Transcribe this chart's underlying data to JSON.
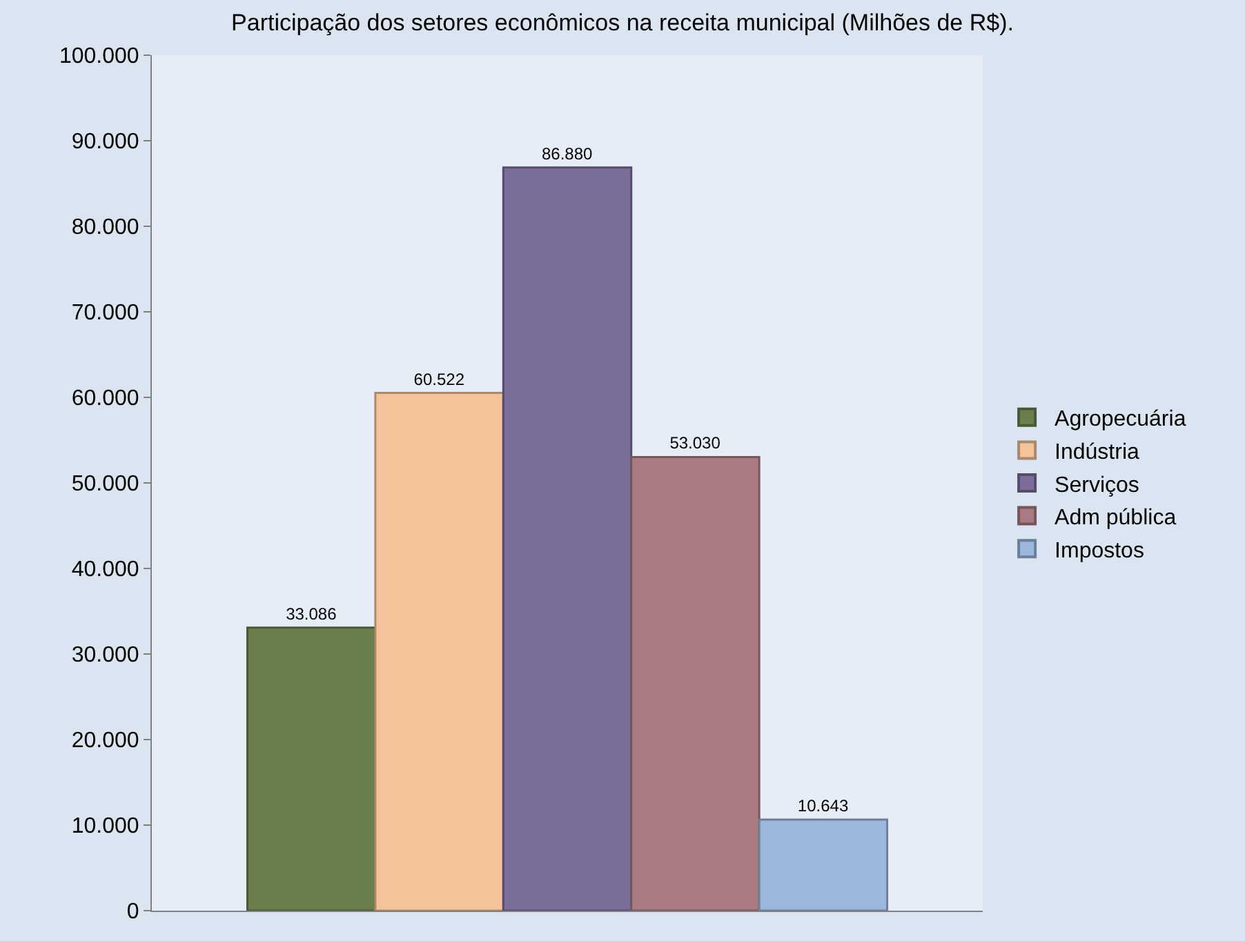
{
  "chart_data": {
    "type": "bar",
    "title": "Participação dos setores econômicos na receita municipal (Milhões de R$).",
    "categories": [
      null
    ],
    "series": [
      {
        "name": "Agropecuária",
        "color": "#6a7f4c",
        "values": [
          33086
        ],
        "value_labels": [
          "33.086"
        ]
      },
      {
        "name": "Indústria",
        "color": "#f4c39a",
        "values": [
          60522
        ],
        "value_labels": [
          "60.522"
        ]
      },
      {
        "name": "Serviços",
        "color": "#7b6e9a",
        "values": [
          86880
        ],
        "value_labels": [
          "86.880"
        ]
      },
      {
        "name": "Adm pública",
        "color": "#a97b80",
        "values": [
          53030
        ],
        "value_labels": [
          "53.030"
        ]
      },
      {
        "name": "Impostos",
        "color": "#9cb7dc",
        "values": [
          10643
        ],
        "value_labels": [
          "10.643"
        ]
      }
    ],
    "ylim": [
      0,
      100000
    ],
    "yticks": [
      {
        "value": 0,
        "label": "0"
      },
      {
        "value": 10000,
        "label": "10.000"
      },
      {
        "value": 20000,
        "label": "20.000"
      },
      {
        "value": 30000,
        "label": "30.000"
      },
      {
        "value": 40000,
        "label": "40.000"
      },
      {
        "value": 50000,
        "label": "50.000"
      },
      {
        "value": 60000,
        "label": "60.000"
      },
      {
        "value": 70000,
        "label": "70.000"
      },
      {
        "value": 80000,
        "label": "80.000"
      },
      {
        "value": 90000,
        "label": "90.000"
      },
      {
        "value": 100000,
        "label": "100.000"
      }
    ],
    "legend": "right",
    "grid": false
  }
}
